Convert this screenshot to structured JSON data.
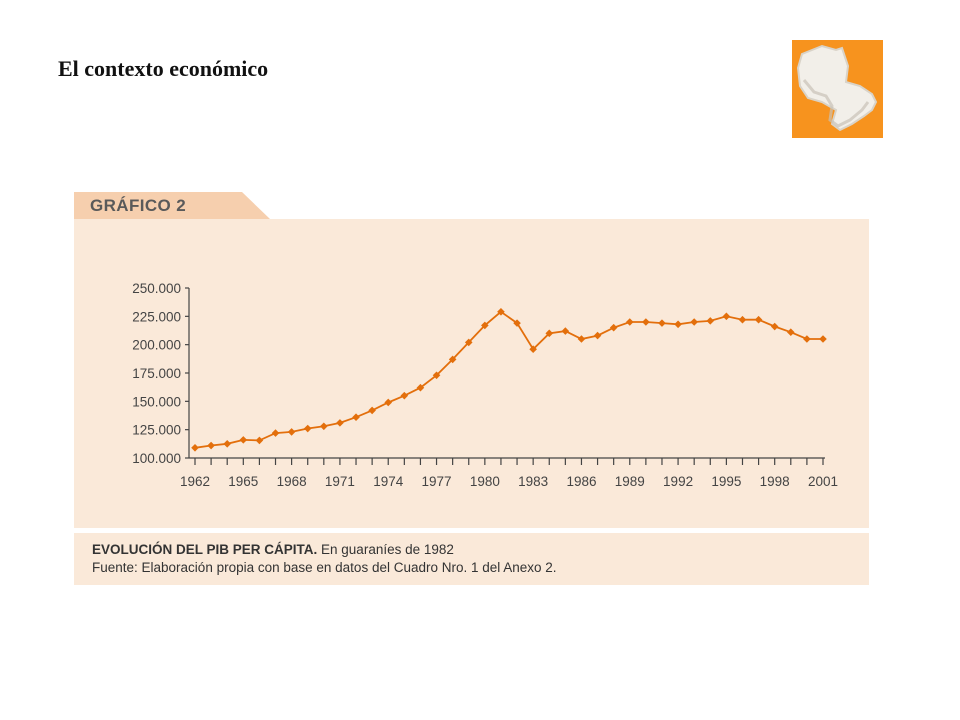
{
  "slide": {
    "title": "El contexto económico"
  },
  "panel": {
    "header_label": "GRÁFICO 2"
  },
  "caption": {
    "title_bold": "EVOLUCIÓN DEL PIB PER CÁPITA.",
    "title_rest": " En guaraníes de 1982",
    "source": "Fuente: Elaboración propia con base en datos del Cuadro Nro. 1 del Anexo 2."
  },
  "colors": {
    "line": "#e36f0c",
    "logo_orange": "#f7931e",
    "panel_bg": "#fae9d9",
    "header_bg": "#f6cfae"
  },
  "chart_data": {
    "type": "line",
    "title": "",
    "xlabel": "",
    "ylabel": "",
    "x": [
      1962,
      1963,
      1964,
      1965,
      1966,
      1967,
      1968,
      1969,
      1970,
      1971,
      1972,
      1973,
      1974,
      1975,
      1976,
      1977,
      1978,
      1979,
      1980,
      1981,
      1982,
      1983,
      1984,
      1985,
      1986,
      1987,
      1988,
      1989,
      1990,
      1991,
      1992,
      1993,
      1994,
      1995,
      1996,
      1997,
      1998,
      1999,
      2000,
      2001
    ],
    "series": [
      {
        "values": [
          109000,
          111000,
          112500,
          116000,
          115500,
          122000,
          123000,
          126000,
          128000,
          131000,
          136000,
          142000,
          149000,
          155000,
          162000,
          173000,
          187000,
          202000,
          217000,
          229000,
          219000,
          196000,
          210000,
          212000,
          205000,
          208000,
          215000,
          220000,
          220000,
          219000,
          218000,
          220000,
          221000,
          225000,
          222000,
          222000,
          216000,
          211000,
          205000,
          205000
        ],
        "marker": "diamond"
      }
    ],
    "x_ticks": [
      1962,
      1965,
      1968,
      1971,
      1974,
      1977,
      1980,
      1983,
      1986,
      1989,
      1992,
      1995,
      1998,
      2001
    ],
    "x_tick_labels": [
      "1962",
      "1965",
      "1968",
      "1971",
      "1974",
      "1977",
      "1980",
      "1983",
      "1986",
      "1989",
      "1992",
      "1995",
      "1998",
      "2001"
    ],
    "y_ticks": [
      100000,
      125000,
      150000,
      175000,
      200000,
      225000,
      250000
    ],
    "y_tick_labels": [
      "100.000",
      "125.000",
      "150.000",
      "175.000",
      "200.000",
      "225.000",
      "250.000"
    ],
    "xlim": [
      1962,
      2001
    ],
    "ylim": [
      100000,
      250000
    ],
    "grid": false,
    "legend": "none"
  }
}
